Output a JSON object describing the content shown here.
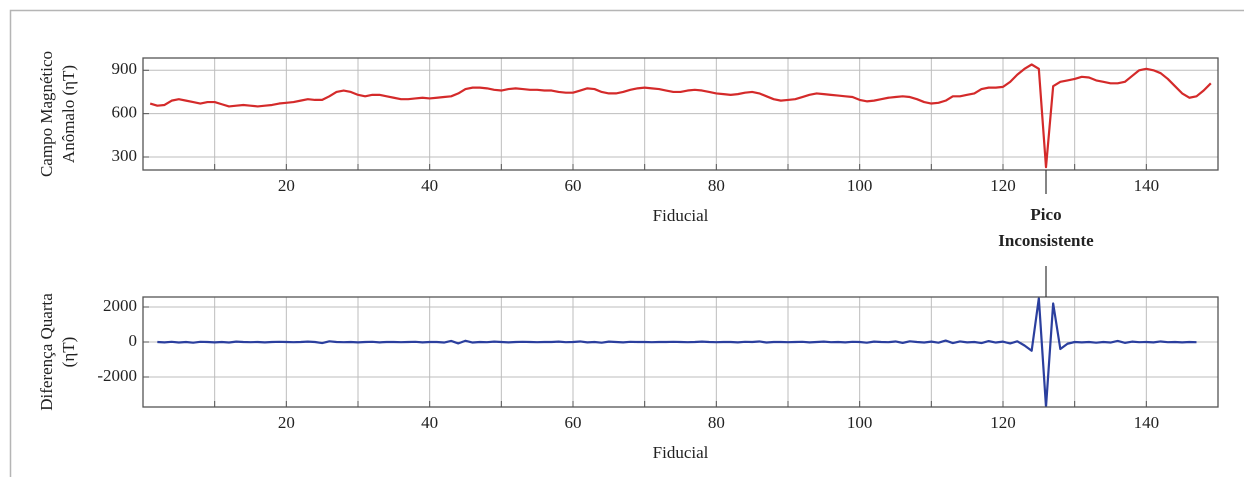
{
  "chart_data": [
    {
      "type": "line",
      "xlabel": "Fiducial",
      "ylabel": [
        "Campo Magnético",
        "Anômalo (ηT)"
      ],
      "xlim": [
        0,
        150
      ],
      "ylim": [
        210,
        985
      ],
      "xticks": [
        20,
        40,
        60,
        80,
        100,
        120,
        140
      ],
      "yticks": [
        300,
        600,
        900
      ],
      "xgrid": [
        10,
        20,
        30,
        40,
        50,
        60,
        70,
        80,
        90,
        100,
        110,
        120,
        130,
        140
      ],
      "grid": true,
      "series": [
        {
          "color": "#d42a2a",
          "x": [
            1,
            2,
            3,
            4,
            5,
            6,
            7,
            8,
            9,
            10,
            11,
            12,
            13,
            14,
            15,
            16,
            17,
            18,
            19,
            20,
            21,
            22,
            23,
            24,
            25,
            26,
            27,
            28,
            29,
            30,
            31,
            32,
            33,
            34,
            35,
            36,
            37,
            38,
            39,
            40,
            41,
            42,
            43,
            44,
            45,
            46,
            47,
            48,
            49,
            50,
            51,
            52,
            53,
            54,
            55,
            56,
            57,
            58,
            59,
            60,
            61,
            62,
            63,
            64,
            65,
            66,
            67,
            68,
            69,
            70,
            71,
            72,
            73,
            74,
            75,
            76,
            77,
            78,
            79,
            80,
            81,
            82,
            83,
            84,
            85,
            86,
            87,
            88,
            89,
            90,
            91,
            92,
            93,
            94,
            95,
            96,
            97,
            98,
            99,
            100,
            101,
            102,
            103,
            104,
            105,
            106,
            107,
            108,
            109,
            110,
            111,
            112,
            113,
            114,
            115,
            116,
            117,
            118,
            119,
            120,
            121,
            122,
            123,
            124,
            125,
            126,
            127,
            128,
            129,
            130,
            131,
            132,
            133,
            134,
            135,
            136,
            137,
            138,
            139,
            140,
            141,
            142,
            143,
            144,
            145,
            146,
            147,
            148,
            149
          ],
          "values": [
            670,
            655,
            660,
            690,
            700,
            690,
            680,
            670,
            680,
            680,
            665,
            650,
            655,
            660,
            655,
            650,
            655,
            660,
            670,
            675,
            680,
            690,
            700,
            695,
            695,
            720,
            750,
            760,
            750,
            730,
            720,
            730,
            730,
            720,
            710,
            700,
            700,
            705,
            710,
            705,
            710,
            715,
            720,
            740,
            770,
            780,
            780,
            775,
            765,
            760,
            770,
            775,
            770,
            765,
            765,
            760,
            760,
            750,
            745,
            745,
            760,
            775,
            770,
            750,
            740,
            740,
            750,
            765,
            775,
            780,
            775,
            770,
            760,
            750,
            750,
            760,
            765,
            760,
            750,
            740,
            735,
            730,
            735,
            745,
            750,
            740,
            720,
            700,
            690,
            695,
            700,
            715,
            730,
            740,
            735,
            730,
            725,
            720,
            715,
            695,
            685,
            690,
            700,
            710,
            715,
            720,
            715,
            700,
            680,
            670,
            675,
            690,
            720,
            720,
            730,
            740,
            770,
            780,
            780,
            785,
            820,
            870,
            910,
            940,
            910,
            230,
            790,
            820,
            830,
            840,
            855,
            850,
            830,
            820,
            810,
            810,
            820,
            860,
            900,
            910,
            900,
            880,
            840,
            790,
            740,
            710,
            720,
            760,
            810
          ]
        }
      ]
    },
    {
      "type": "line",
      "xlabel": "Fiducial",
      "ylabel": [
        "Diferença Quarta",
        "(ηT)"
      ],
      "xlim": [
        0,
        150
      ],
      "ylim": [
        -3714,
        2571
      ],
      "xticks": [
        20,
        40,
        60,
        80,
        100,
        120,
        140
      ],
      "yticks": [
        2000,
        0,
        -2000
      ],
      "xgrid": [
        10,
        20,
        30,
        40,
        50,
        60,
        70,
        80,
        90,
        100,
        110,
        120,
        130,
        140
      ],
      "grid": true,
      "series": [
        {
          "color": "#2b3f9e",
          "x": [
            2,
            3,
            4,
            5,
            6,
            7,
            8,
            9,
            10,
            11,
            12,
            13,
            14,
            15,
            16,
            17,
            18,
            19,
            20,
            21,
            22,
            23,
            24,
            25,
            26,
            27,
            28,
            29,
            30,
            31,
            32,
            33,
            34,
            35,
            36,
            37,
            38,
            39,
            40,
            41,
            42,
            43,
            44,
            45,
            46,
            47,
            48,
            49,
            50,
            51,
            52,
            53,
            54,
            55,
            56,
            57,
            58,
            59,
            60,
            61,
            62,
            63,
            64,
            65,
            66,
            67,
            68,
            69,
            70,
            71,
            72,
            73,
            74,
            75,
            76,
            77,
            78,
            79,
            80,
            81,
            82,
            83,
            84,
            85,
            86,
            87,
            88,
            89,
            90,
            91,
            92,
            93,
            94,
            95,
            96,
            97,
            98,
            99,
            100,
            101,
            102,
            103,
            104,
            105,
            106,
            107,
            108,
            109,
            110,
            111,
            112,
            113,
            114,
            115,
            116,
            117,
            118,
            119,
            120,
            121,
            122,
            123,
            124,
            125,
            126,
            127,
            128,
            129,
            130,
            131,
            132,
            133,
            134,
            135,
            136,
            137,
            138,
            139,
            140,
            141,
            142,
            143,
            144,
            145,
            146,
            147
          ],
          "values": [
            0,
            -20,
            10,
            -30,
            0,
            -40,
            10,
            0,
            -20,
            0,
            -30,
            20,
            0,
            -10,
            0,
            -20,
            0,
            10,
            0,
            -10,
            0,
            20,
            0,
            -60,
            40,
            0,
            -10,
            0,
            -20,
            0,
            10,
            -20,
            0,
            0,
            -10,
            0,
            10,
            -20,
            0,
            0,
            -30,
            60,
            -80,
            70,
            -30,
            0,
            -10,
            20,
            0,
            -20,
            0,
            10,
            0,
            -10,
            0,
            0,
            20,
            -10,
            0,
            30,
            -20,
            0,
            -40,
            20,
            0,
            -20,
            10,
            0,
            0,
            -10,
            0,
            0,
            10,
            0,
            -10,
            0,
            20,
            0,
            -10,
            0,
            0,
            -20,
            10,
            0,
            30,
            -30,
            0,
            0,
            -10,
            0,
            10,
            -20,
            0,
            20,
            -10,
            0,
            -20,
            10,
            0,
            -40,
            20,
            0,
            -10,
            30,
            -50,
            40,
            0,
            -30,
            20,
            -40,
            80,
            -60,
            30,
            -20,
            0,
            -60,
            50,
            -30,
            20,
            -80,
            40,
            -200,
            -500,
            2500,
            -3700,
            2200,
            -400,
            -100,
            0,
            -20,
            0,
            -40,
            0,
            -30,
            60,
            -50,
            20,
            -10,
            0,
            -20,
            30,
            -10,
            0,
            -20,
            0,
            -10
          ]
        }
      ]
    }
  ],
  "annotation": {
    "text": [
      "Pico",
      "Inconsistente"
    ],
    "x": 126
  }
}
